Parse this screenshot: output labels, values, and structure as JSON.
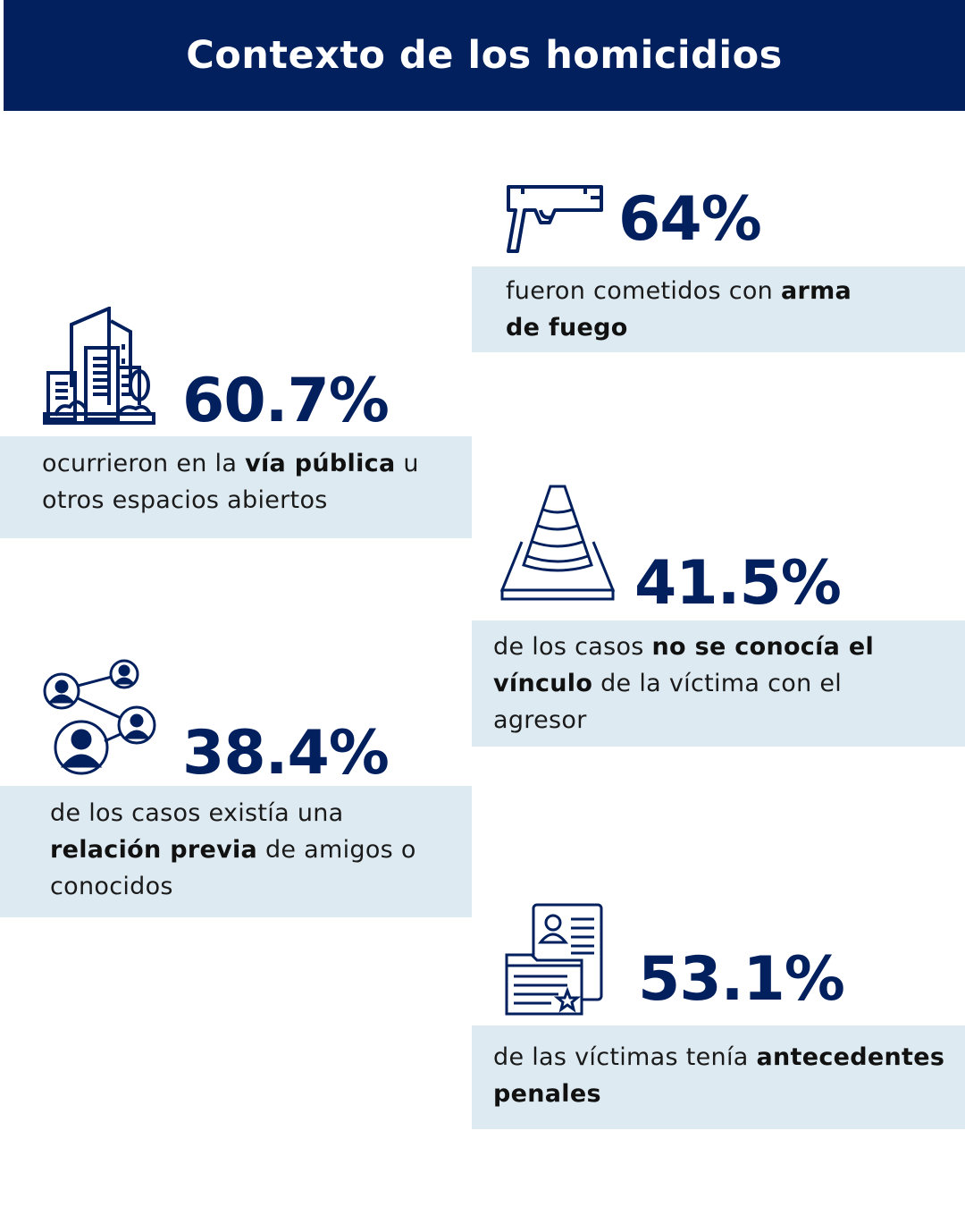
{
  "title": "Contexto de  los homicidios",
  "colors": {
    "primary": "#021f5e",
    "box_bg": "#ddeaf1"
  },
  "stats": {
    "firearm": {
      "icon": "pistol-icon",
      "value": "64%",
      "parts": [
        "fueron cometidos con ",
        "arma",
        "de fuego"
      ]
    },
    "public_space": {
      "icon": "city-buildings-icon",
      "value": "60.7%",
      "parts": [
        "ocurrieron en la ",
        "vía pública",
        " u",
        "otros espacios abiertos"
      ]
    },
    "unknown_link": {
      "icon": "traffic-cone-icon",
      "value": "41.5%",
      "parts": [
        "de los casos ",
        "no se conocía el",
        "vínculo",
        " de la víctima con el",
        "agresor"
      ]
    },
    "prior_relation": {
      "icon": "network-people-icon",
      "value": "38.4%",
      "parts": [
        "de los casos existía una",
        "relación previa",
        " de amigos o",
        "conocidos"
      ]
    },
    "criminal_record": {
      "icon": "criminal-record-document-icon",
      "value": "53.1%",
      "parts": [
        "de las víctimas tenía ",
        "antecedentes",
        "penales"
      ]
    }
  }
}
